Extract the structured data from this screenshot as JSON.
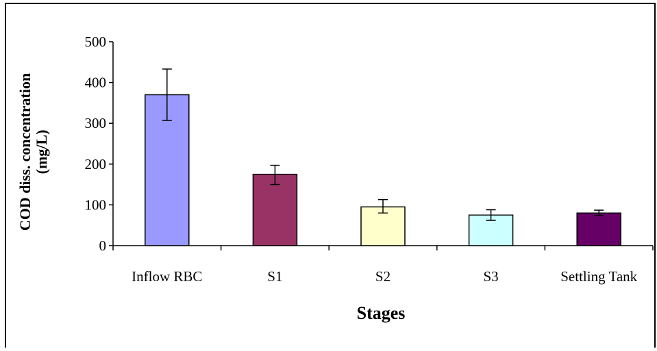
{
  "chart_data": {
    "type": "bar",
    "title": "",
    "xlabel": "Stages",
    "ylabel_line1": "COD diss. concentration",
    "ylabel_line2": "(mg/L)",
    "categories": [
      "Inflow RBC",
      "S1",
      "S2",
      "S3",
      "Settling Tank"
    ],
    "values": [
      370,
      175,
      95,
      75,
      80
    ],
    "error_low": [
      307,
      150,
      80,
      62,
      74
    ],
    "error_high": [
      433,
      197,
      113,
      88,
      87
    ],
    "bar_colors": [
      "#9999ff",
      "#993366",
      "#ffffcc",
      "#ccffff",
      "#660066"
    ],
    "ylim": [
      0,
      500
    ],
    "yticks": [
      0,
      100,
      200,
      300,
      400,
      500
    ],
    "grid": false,
    "legend": "none"
  }
}
